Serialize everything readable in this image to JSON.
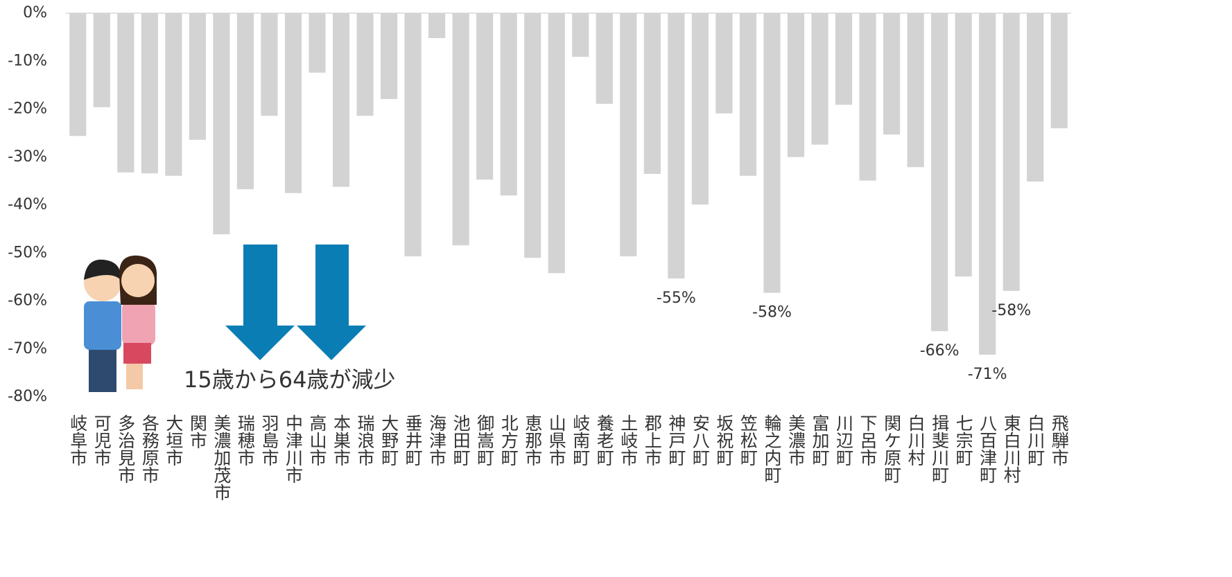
{
  "chart_data": {
    "type": "bar",
    "categories": [
      "岐阜市",
      "可児市",
      "多治見市",
      "各務原市",
      "大垣市",
      "関市",
      "美濃加茂市",
      "瑞穂市",
      "羽島市",
      "中津川市",
      "高山市",
      "本巣市",
      "瑞浪市",
      "大野町",
      "垂井町",
      "海津市",
      "池田町",
      "御嵩町",
      "北方町",
      "恵那市",
      "山県市",
      "岐南町",
      "養老町",
      "土岐市",
      "郡上市",
      "神戸町",
      "安八町",
      "坂祝町",
      "笠松町",
      "輪之内町",
      "美濃市",
      "富加町",
      "川辺町",
      "下呂市",
      "関ケ原町",
      "白川村",
      "揖斐川町",
      "七宗町",
      "八百津町",
      "東白川村",
      "白川町",
      "飛騨市"
    ],
    "values": [
      -25.6,
      -19.6,
      -33.2,
      -33.4,
      -33.9,
      -26.4,
      -46.1,
      -36.7,
      -21.4,
      -37.5,
      -12.4,
      -36.2,
      -21.4,
      -17.9,
      -50.7,
      -5.2,
      -48.4,
      -34.7,
      -38.0,
      -51.0,
      -54.2,
      -9.1,
      -18.9,
      -50.7,
      -33.5,
      -55.3,
      -39.9,
      -20.9,
      -33.9,
      -58.3,
      -30.0,
      -27.4,
      -19.1,
      -34.9,
      -25.3,
      -32.1,
      -66.3,
      -54.9,
      -71.2,
      -57.9,
      -35.1,
      -24.0
    ],
    "value_labels": [
      null,
      null,
      null,
      null,
      null,
      null,
      null,
      null,
      null,
      null,
      null,
      null,
      null,
      null,
      null,
      null,
      null,
      null,
      null,
      null,
      null,
      null,
      null,
      null,
      null,
      "-55%",
      null,
      null,
      null,
      "-58%",
      null,
      null,
      null,
      null,
      null,
      null,
      "-66%",
      null,
      "-71%",
      "-58%",
      null,
      null
    ],
    "color": "#d3d3d3",
    "ylim": [
      -80,
      0
    ],
    "yticks": [
      {
        "value": 0,
        "label": "0%"
      },
      {
        "value": -10,
        "label": "-10%"
      },
      {
        "value": -20,
        "label": "-20%"
      },
      {
        "value": -30,
        "label": "-30%"
      },
      {
        "value": -40,
        "label": "-40%"
      },
      {
        "value": -50,
        "label": "-50%"
      },
      {
        "value": -60,
        "label": "-60%"
      },
      {
        "value": -70,
        "label": "-70%"
      },
      {
        "value": -80,
        "label": "-80%"
      }
    ],
    "grid": false,
    "annotation": "15歳から64歳が減少"
  }
}
